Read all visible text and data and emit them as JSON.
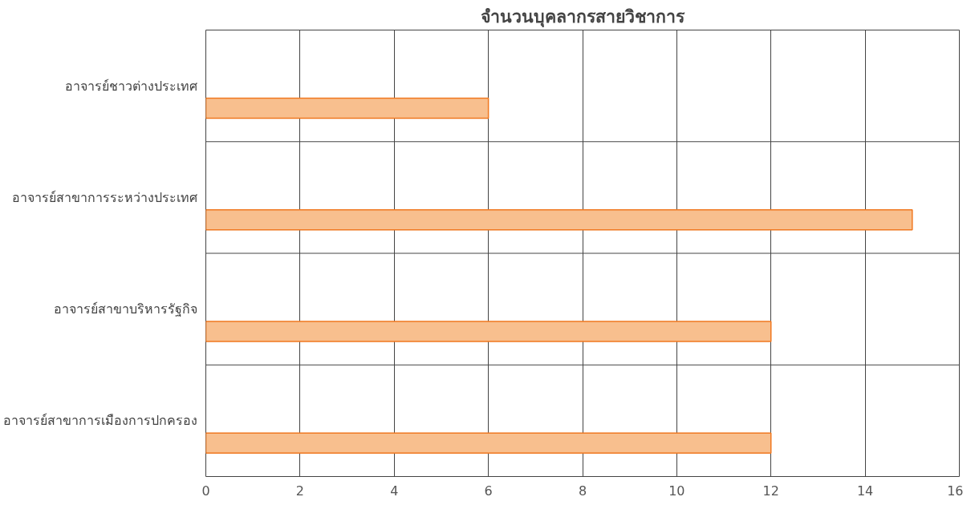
{
  "chart_data": {
    "type": "bar",
    "orientation": "horizontal",
    "title": "จำนวนบุคลากรสายวิชาการ",
    "categories": [
      "อาจารย์ชาวต่างประเทศ",
      "อาจารย์สาขาการระหว่างประเทศ",
      "อาจารย์สาขาบริหารรัฐกิจ",
      "อาจารย์สาขาการเมืองการปกครอง"
    ],
    "values": [
      6,
      15,
      12,
      12
    ],
    "color": "#f8bf8e",
    "xlim": [
      0,
      16
    ],
    "xticks": [
      0,
      2,
      4,
      6,
      8,
      10,
      12,
      14,
      16
    ],
    "grid": true
  }
}
